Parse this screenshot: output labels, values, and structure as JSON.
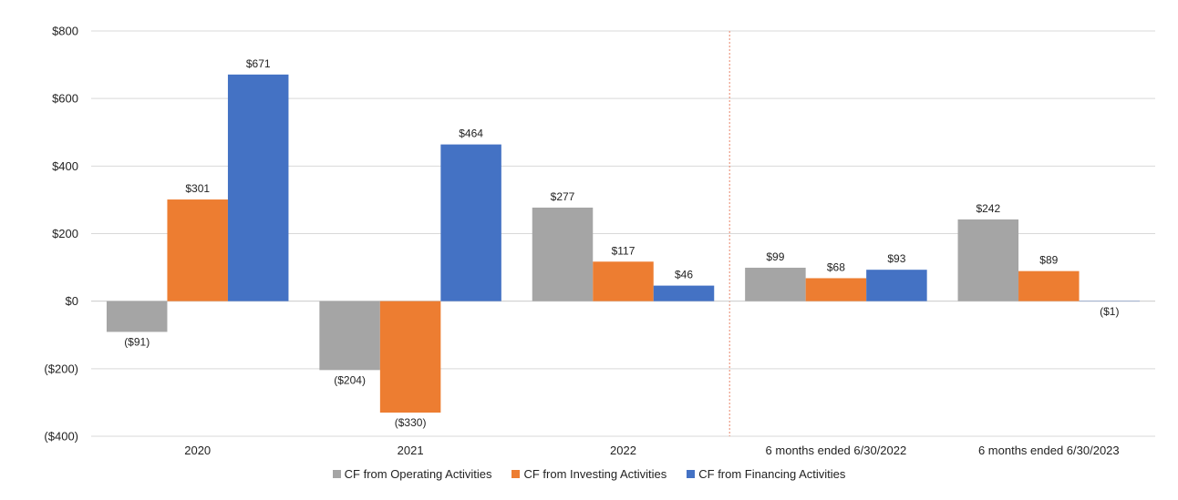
{
  "chart_data": {
    "type": "bar",
    "title": "",
    "xlabel": "",
    "ylabel": "",
    "ylim": [
      -400,
      800
    ],
    "yticks": [
      -400,
      -200,
      0,
      200,
      400,
      600,
      800
    ],
    "ytick_labels": [
      "($400)",
      "($200)",
      "$0",
      "$200",
      "$400",
      "$600",
      "$800"
    ],
    "categories": [
      "2020",
      "2021",
      "2022",
      "6 months ended 6/30/2022",
      "6 months ended 6/30/2023"
    ],
    "grid": true,
    "legend_position": "bottom",
    "divider_after_category": 2,
    "series": [
      {
        "name": "CF from Operating Activities",
        "color": "#A5A5A5",
        "values": [
          -91,
          -204,
          277,
          99,
          242
        ],
        "labels": [
          "($91)",
          "($204)",
          "$277",
          "$99",
          "$242"
        ]
      },
      {
        "name": "CF from Investing Activities",
        "color": "#ED7D31",
        "values": [
          301,
          -330,
          117,
          68,
          89
        ],
        "labels": [
          "$301",
          "($330)",
          "$117",
          "$68",
          "$89"
        ]
      },
      {
        "name": "CF from Financing Activities",
        "color": "#4472C4",
        "values": [
          671,
          464,
          46,
          93,
          -1
        ],
        "labels": [
          "$671",
          "$464",
          "$46",
          "$93",
          "($1)"
        ]
      }
    ]
  }
}
